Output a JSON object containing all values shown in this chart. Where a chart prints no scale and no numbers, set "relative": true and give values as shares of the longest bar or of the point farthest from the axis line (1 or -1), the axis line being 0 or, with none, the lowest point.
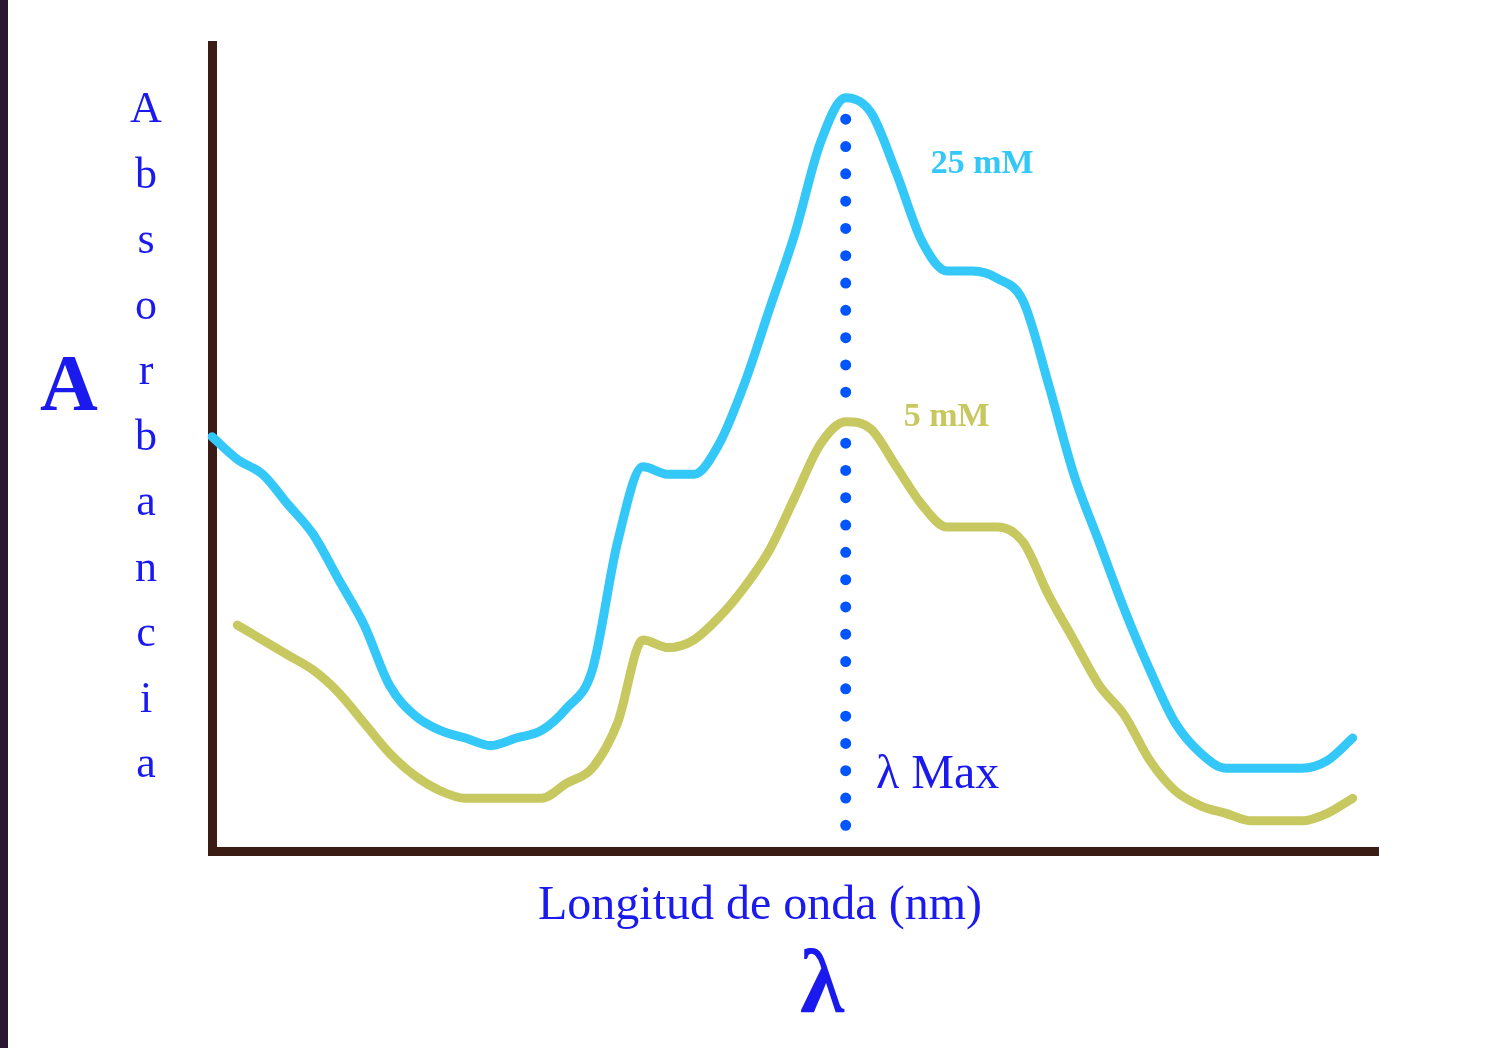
{
  "chart_data": {
    "type": "line",
    "relative": true,
    "xlabel": "Longitud de onda (nm)",
    "ylabel": "Absorbancia",
    "annotations": [
      "A",
      "λ",
      "λ Max"
    ],
    "categories": [
      null,
      null,
      null,
      null,
      null,
      null,
      null,
      null,
      null,
      null,
      null,
      null,
      null,
      null,
      null,
      null,
      null,
      null,
      null,
      null,
      null,
      null,
      null,
      null,
      null,
      null,
      null,
      null,
      null,
      null,
      null,
      null,
      null,
      null,
      null,
      null,
      null,
      null,
      null,
      null,
      null,
      null,
      null,
      null,
      null,
      null,
      null
    ],
    "series": [
      {
        "name": "25 mM",
        "color": "#33c8f8",
        "values": [
          0.55,
          0.52,
          0.5,
          0.46,
          0.42,
          0.36,
          0.3,
          0.22,
          0.18,
          0.16,
          0.15,
          0.14,
          0.15,
          0.16,
          0.19,
          0.24,
          0.41,
          0.51,
          0.5,
          0.5,
          0.54,
          0.62,
          0.72,
          0.82,
          0.94,
          1.0,
          0.98,
          0.9,
          0.81,
          0.77,
          0.77,
          0.76,
          0.73,
          0.62,
          0.5,
          0.41,
          0.32,
          0.24,
          0.17,
          0.13,
          0.11,
          0.11,
          0.11,
          0.11,
          0.12,
          0.15,
          null
        ]
      },
      {
        "name": "5 mM",
        "color": "#c8c860",
        "values": [
          null,
          0.3,
          0.28,
          0.26,
          0.24,
          0.21,
          0.17,
          0.13,
          0.1,
          0.08,
          0.07,
          0.07,
          0.07,
          0.07,
          0.09,
          0.11,
          0.17,
          0.28,
          0.27,
          0.28,
          0.31,
          0.35,
          0.4,
          0.47,
          0.54,
          0.57,
          0.56,
          0.51,
          0.46,
          0.43,
          0.43,
          0.43,
          0.41,
          0.34,
          0.28,
          0.22,
          0.18,
          0.12,
          0.08,
          0.06,
          0.05,
          0.04,
          0.04,
          0.04,
          0.05,
          0.07,
          null
        ]
      }
    ],
    "tick_labels": false,
    "marker": "none",
    "line_style": "solid"
  }
}
